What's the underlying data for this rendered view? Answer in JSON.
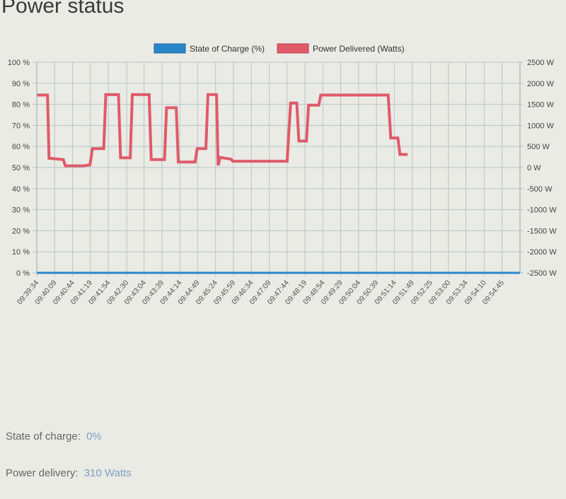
{
  "page": {
    "title": "Power status"
  },
  "status": {
    "soc_label": "State of charge:",
    "soc_value": "0%",
    "power_label": "Power delivery:",
    "power_value": "310 Watts"
  },
  "chart_data": {
    "type": "line",
    "legend_position": "top",
    "grid": true,
    "x_ticks": [
      "09:39:34",
      "09:40:09",
      "09:40:44",
      "09:41:19",
      "09:41:54",
      "09:42:30",
      "09:43:04",
      "09:43:39",
      "09:44:14",
      "09:44:49",
      "09:45:24",
      "09:45:59",
      "09:46:34",
      "09:47:09",
      "09:47:44",
      "09:48:19",
      "09:48:54",
      "09:49:29",
      "09:50:04",
      "09:50:39",
      "09:51:14",
      "09:51:49",
      "09:52:25",
      "09:53:00",
      "09:53:34",
      "09:54:10",
      "09:54:45"
    ],
    "y_left": {
      "ticks": [
        "100 %",
        "90 %",
        "80 %",
        "70 %",
        "60 %",
        "50 %",
        "40 %",
        "30 %",
        "20 %",
        "10 %",
        "0 %"
      ],
      "range": [
        0,
        100
      ]
    },
    "y_right": {
      "ticks": [
        "2500 W",
        "2000 W",
        "1500 W",
        "1000 W",
        "500 W",
        "0 W",
        "-500 W",
        "-1000 W",
        "-1500 W",
        "-2000 W",
        "-2500 W"
      ],
      "range": [
        -2500,
        2500
      ]
    },
    "series": [
      {
        "name": "State of Charge (%)",
        "color": "#2b86c8",
        "axis": "left",
        "points": [
          [
            "09:39:34",
            0
          ],
          [
            "09:55:20",
            0
          ]
        ]
      },
      {
        "name": "Power Delivered (Watts)",
        "color": "#e05a6a",
        "axis": "right",
        "points": [
          [
            "09:39:34",
            1720
          ],
          [
            "09:39:55",
            1720
          ],
          [
            "09:39:58",
            220
          ],
          [
            "09:40:26",
            190
          ],
          [
            "09:40:30",
            40
          ],
          [
            "09:41:05",
            40
          ],
          [
            "09:41:18",
            60
          ],
          [
            "09:41:23",
            450
          ],
          [
            "09:41:45",
            450
          ],
          [
            "09:41:49",
            1730
          ],
          [
            "09:42:14",
            1730
          ],
          [
            "09:42:18",
            230
          ],
          [
            "09:42:37",
            230
          ],
          [
            "09:42:41",
            1730
          ],
          [
            "09:43:14",
            1730
          ],
          [
            "09:43:18",
            190
          ],
          [
            "09:43:44",
            190
          ],
          [
            "09:43:48",
            1420
          ],
          [
            "09:44:07",
            1420
          ],
          [
            "09:44:11",
            130
          ],
          [
            "09:44:44",
            130
          ],
          [
            "09:44:48",
            450
          ],
          [
            "09:45:05",
            450
          ],
          [
            "09:45:09",
            1730
          ],
          [
            "09:45:26",
            1730
          ],
          [
            "09:45:29",
            50
          ],
          [
            "09:45:33",
            240
          ],
          [
            "09:45:54",
            200
          ],
          [
            "09:45:58",
            150
          ],
          [
            "09:47:44",
            150
          ],
          [
            "09:47:51",
            1530
          ],
          [
            "09:48:03",
            1530
          ],
          [
            "09:48:07",
            630
          ],
          [
            "09:48:22",
            630
          ],
          [
            "09:48:26",
            1480
          ],
          [
            "09:48:46",
            1480
          ],
          [
            "09:48:50",
            1720
          ],
          [
            "09:51:02",
            1720
          ],
          [
            "09:51:07",
            700
          ],
          [
            "09:51:21",
            700
          ],
          [
            "09:51:25",
            310
          ],
          [
            "09:51:40",
            310
          ]
        ]
      }
    ]
  }
}
